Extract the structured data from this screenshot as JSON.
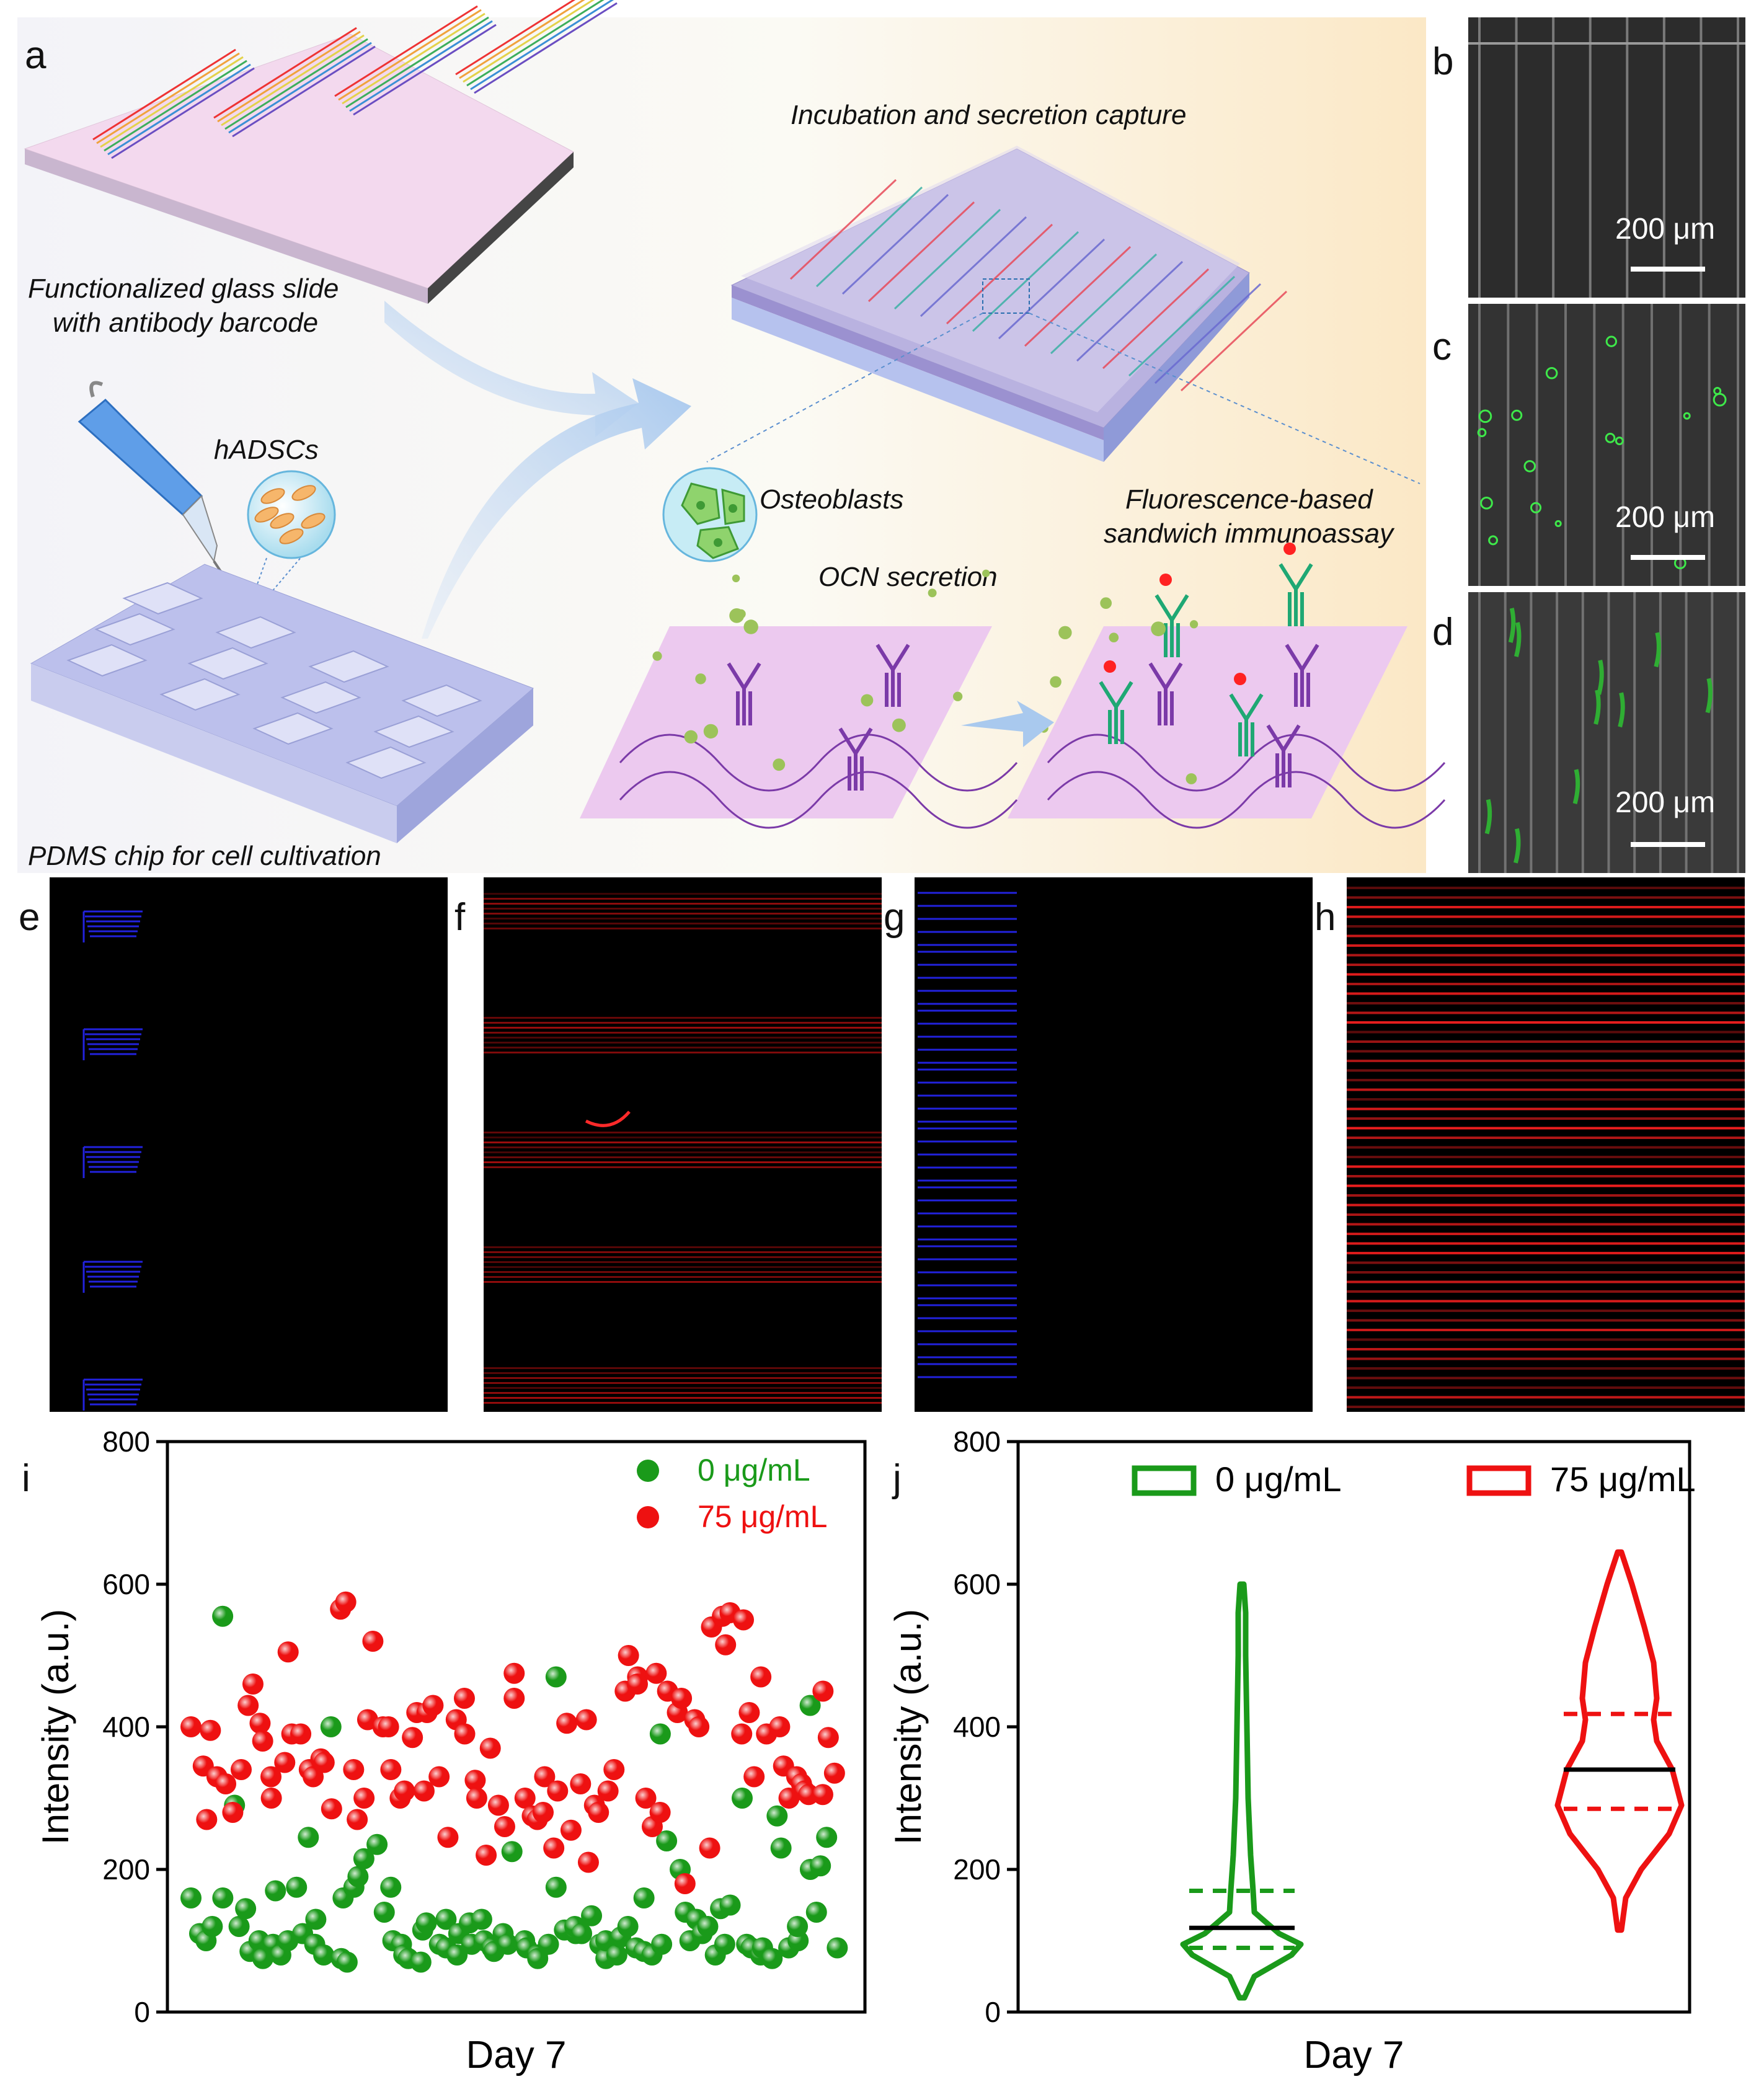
{
  "panel_letters": {
    "a": "a",
    "b": "b",
    "c": "c",
    "d": "d",
    "e": "e",
    "f": "f",
    "g": "g",
    "h": "h",
    "i": "i",
    "j": "j"
  },
  "panel_a": {
    "slide_label_1": "Functionalized glass slide",
    "slide_label_2": "with antibody barcode",
    "incubation_label": "Incubation and secretion capture",
    "cells_label": "hADSCs",
    "osteoblasts_label": "Osteoblasts",
    "secretion_label": "OCN secretion",
    "assay_label_1": "Fluorescence-based",
    "assay_label_2": "sandwich immunoassay",
    "chip_label": "PDMS chip for cell cultivation"
  },
  "micrographs": {
    "scale_b": "200 μm",
    "scale_c": "200 μm",
    "scale_d": "200 μm"
  },
  "colors": {
    "green": "#1a9a1a",
    "red": "#ee1111",
    "blue": "#2222dd",
    "teal": "#1fa874",
    "purple": "#7b3aa8"
  },
  "chart_data": [
    {
      "panel": "i",
      "type": "scatter",
      "title": "",
      "xlabel": "Day 7",
      "ylabel": "Intensity (a.u.)",
      "ylim": [
        0,
        800
      ],
      "yticks": [
        "0",
        "200",
        "400",
        "600",
        "800"
      ],
      "legend_position": "top-right",
      "series": [
        {
          "name": "0 μg/mL",
          "color": "#1a9a1a",
          "values": [
            160,
            110,
            100,
            120,
            555,
            160,
            290,
            120,
            145,
            85,
            100,
            75,
            95,
            170,
            80,
            100,
            175,
            110,
            245,
            95,
            130,
            80,
            400,
            75,
            160,
            70,
            175,
            190,
            215,
            235,
            140,
            175,
            100,
            95,
            80,
            75,
            70,
            115,
            125,
            95,
            130,
            90,
            110,
            80,
            125,
            95,
            130,
            100,
            90,
            85,
            110,
            95,
            225,
            100,
            90,
            80,
            75,
            95,
            175,
            470,
            115,
            110,
            120,
            110,
            135,
            95,
            75,
            100,
            80,
            105,
            120,
            90,
            85,
            160,
            80,
            95,
            390,
            240,
            200,
            140,
            100,
            130,
            110,
            120,
            80,
            145,
            95,
            150,
            300,
            95,
            90,
            80,
            90,
            75,
            275,
            230,
            90,
            100,
            120,
            430,
            200,
            140,
            205,
            245,
            90
          ]
        },
        {
          "name": "75 μg/mL",
          "color": "#ee1111",
          "values": [
            400,
            345,
            270,
            395,
            330,
            320,
            280,
            340,
            430,
            460,
            405,
            380,
            330,
            300,
            350,
            505,
            390,
            390,
            340,
            330,
            355,
            350,
            285,
            565,
            575,
            340,
            270,
            300,
            410,
            520,
            400,
            400,
            340,
            300,
            310,
            385,
            420,
            310,
            420,
            430,
            330,
            245,
            410,
            440,
            390,
            325,
            300,
            220,
            370,
            290,
            260,
            440,
            475,
            300,
            275,
            270,
            280,
            330,
            230,
            310,
            405,
            255,
            320,
            410,
            210,
            290,
            280,
            310,
            340,
            450,
            500,
            470,
            460,
            300,
            260,
            475,
            280,
            450,
            420,
            440,
            180,
            410,
            400,
            230,
            540,
            555,
            515,
            560,
            390,
            550,
            420,
            330,
            470,
            390,
            400,
            345,
            300,
            330,
            320,
            310,
            305,
            305,
            450,
            385,
            335
          ]
        }
      ]
    },
    {
      "panel": "j",
      "type": "violin",
      "title": "",
      "xlabel": "Day 7",
      "ylabel": "Intensity (a.u.)",
      "ylim": [
        0,
        800
      ],
      "yticks": [
        "0",
        "200",
        "400",
        "600",
        "800"
      ],
      "legend_position": "top",
      "series": [
        {
          "name": "0 μg/mL",
          "color": "#1a9a1a",
          "min": 20,
          "max": 600,
          "q1": 90,
          "median": 118,
          "q3": 170
        },
        {
          "name": "75 μg/mL",
          "color": "#ee1111",
          "min": 115,
          "max": 645,
          "q1": 285,
          "median": 340,
          "q3": 418
        }
      ]
    }
  ]
}
